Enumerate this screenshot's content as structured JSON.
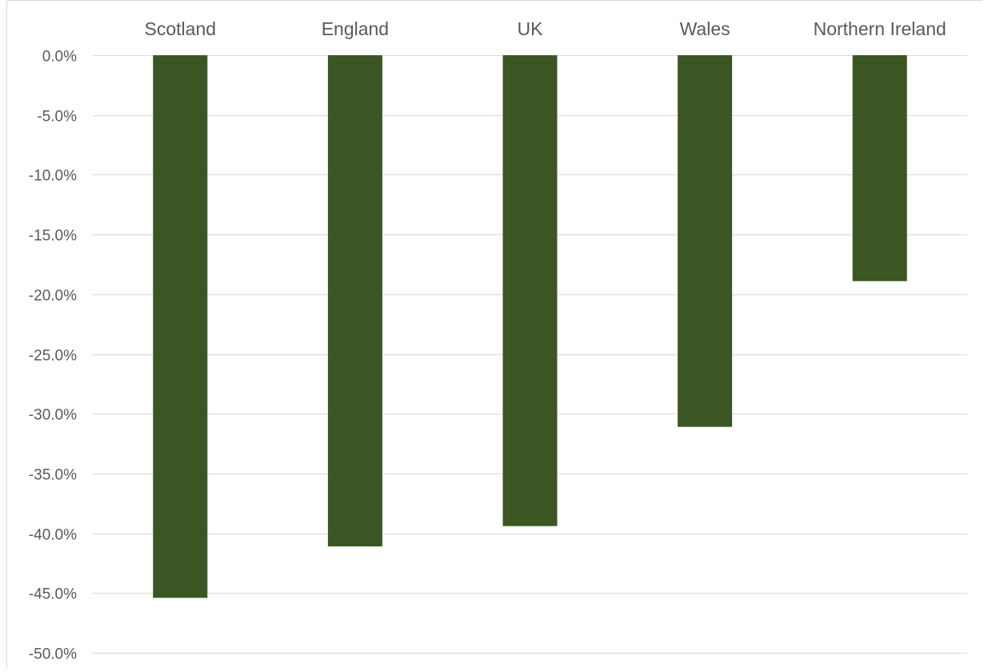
{
  "chart_data": {
    "type": "bar",
    "categories": [
      "Scotland",
      "England",
      "UK",
      "Wales",
      "Northern Ireland"
    ],
    "values": [
      -45.4,
      -41.1,
      -39.4,
      -31.1,
      -18.9
    ],
    "title": "",
    "xlabel": "",
    "ylabel": "",
    "ylim": [
      -50,
      0
    ],
    "y_ticks": [
      0,
      -5,
      -10,
      -15,
      -20,
      -25,
      -30,
      -35,
      -40,
      -45,
      -50
    ],
    "y_tick_labels": [
      "0.0%",
      "-5.0%",
      "-10.0%",
      "-15.0%",
      "-20.0%",
      "-25.0%",
      "-30.0%",
      "-35.0%",
      "-40.0%",
      "-45.0%",
      "-50.0%"
    ],
    "category_axis_position": "top",
    "grid": true,
    "legend": "none",
    "colors": {
      "bar": "#3b5623",
      "grid": "#d9d9d9",
      "text": "#595959",
      "frame": "#d9d9d9"
    }
  }
}
